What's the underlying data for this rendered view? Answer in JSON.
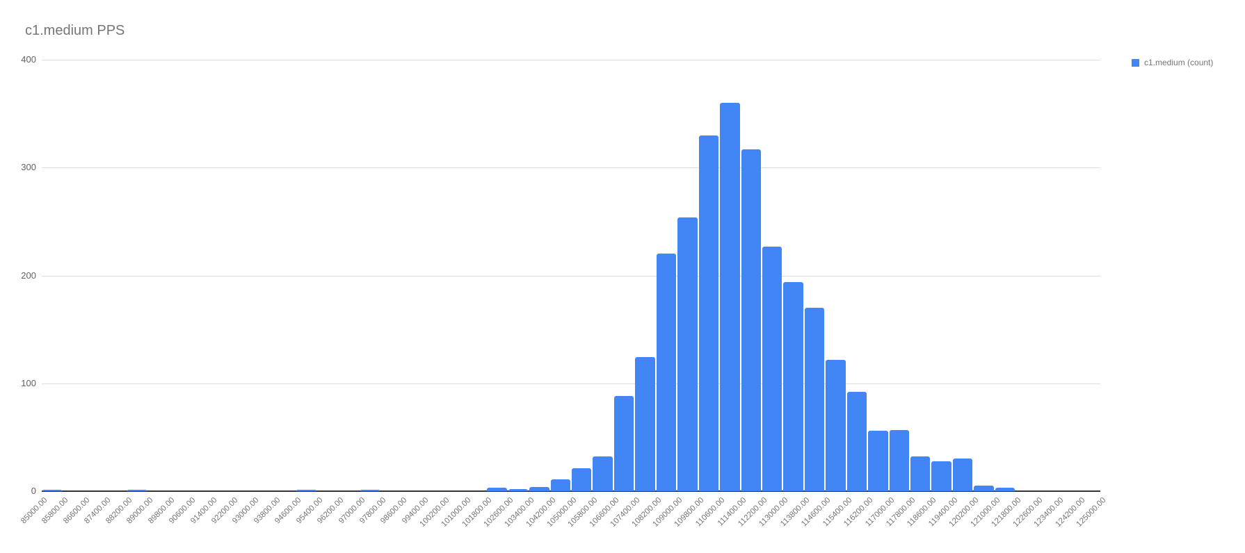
{
  "chart": {
    "title": "c1.medium PPS",
    "legend": {
      "label": "c1.medium (count)",
      "position": "right"
    }
  },
  "colors": {
    "bar": "#4285F4",
    "legend_swatch": "#4285F4",
    "title_text": "#757575",
    "x_tick_text": "#757575",
    "y_tick_text": "#616161",
    "gridline": "#dcdcdc",
    "axis_baseline": "#333333",
    "background": "#ffffff"
  },
  "chart_data": {
    "type": "bar",
    "subtype": "histogram",
    "title": "c1.medium PPS",
    "series_name": "c1.medium (count)",
    "xlabel": "",
    "ylabel": "",
    "grid": true,
    "legend_position": "right",
    "xlim": [
      85000,
      125000
    ],
    "ylim": [
      0,
      400
    ],
    "bucket_size": 800,
    "y_ticks": [
      0,
      100,
      200,
      300,
      400
    ],
    "x_tick_labels": [
      "85000.00",
      "85800.00",
      "86600.00",
      "87400.00",
      "88200.00",
      "89000.00",
      "89800.00",
      "90600.00",
      "91400.00",
      "92200.00",
      "93000.00",
      "93800.00",
      "94600.00",
      "95400.00",
      "96200.00",
      "97000.00",
      "97800.00",
      "98600.00",
      "99400.00",
      "100200.00",
      "101000.00",
      "101800.00",
      "102600.00",
      "103400.00",
      "104200.00",
      "105000.00",
      "105800.00",
      "106600.00",
      "107400.00",
      "108200.00",
      "109000.00",
      "109800.00",
      "110600.00",
      "111400.00",
      "112200.00",
      "113000.00",
      "113800.00",
      "114600.00",
      "115400.00",
      "116200.00",
      "117000.00",
      "117800.00",
      "118600.00",
      "119400.00",
      "120200.00",
      "121000.00",
      "121800.00",
      "122600.00",
      "123400.00",
      "124200.00",
      "125000.00"
    ],
    "counts": [
      1,
      0,
      0,
      0,
      1,
      0,
      0,
      0,
      0,
      0,
      0,
      0,
      1,
      0,
      0,
      1,
      0,
      0,
      0,
      0,
      0,
      3,
      2,
      4,
      11,
      21,
      32,
      88,
      124,
      220,
      254,
      330,
      360,
      317,
      227,
      194,
      170,
      122,
      92,
      56,
      57,
      32,
      28,
      30,
      5,
      3,
      0,
      0,
      0,
      0
    ]
  }
}
